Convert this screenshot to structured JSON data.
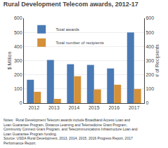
{
  "chart_data": {
    "type": "bar",
    "title": "Rural Development Telecom awards, 2012-17",
    "categories": [
      "2012",
      "2013",
      "2014",
      "2015",
      "2016",
      "2017"
    ],
    "ylabel": "$ Million",
    "y2label": "# of Recipients",
    "series": [
      {
        "name": "Total awards",
        "color": "#4a7ab5",
        "values": [
          165,
          305,
          275,
          270,
          245,
          500
        ]
      },
      {
        "name": "Total number of recipients",
        "color": "#d4913a",
        "values": [
          80,
          30,
          190,
          97,
          130,
          100
        ],
        "axis": "y2"
      }
    ],
    "ylim": [
      0,
      600
    ],
    "yticks": [
      0,
      100,
      200,
      300,
      400,
      500,
      600
    ],
    "y2lim": [
      0,
      600
    ],
    "y2ticks": [
      0,
      100,
      200,
      300,
      400,
      500,
      600
    ],
    "grid": true,
    "legend": "upper left",
    "annotations": [
      "Notes:  Rural Development Telecom awards include Broadband Access Loan and",
      "Loan Guarantee Program, Distance Learning and Telemedicine Grant Program,",
      "Community Connect Grant Program, and Telecommunications Infrastructure Loan and",
      "Loan Guarantee Program funding.",
      "Source: USDA Rural Development, 2013, 2014, 2015, 2016 Progress Report, 2017",
      "Performance Report."
    ]
  }
}
